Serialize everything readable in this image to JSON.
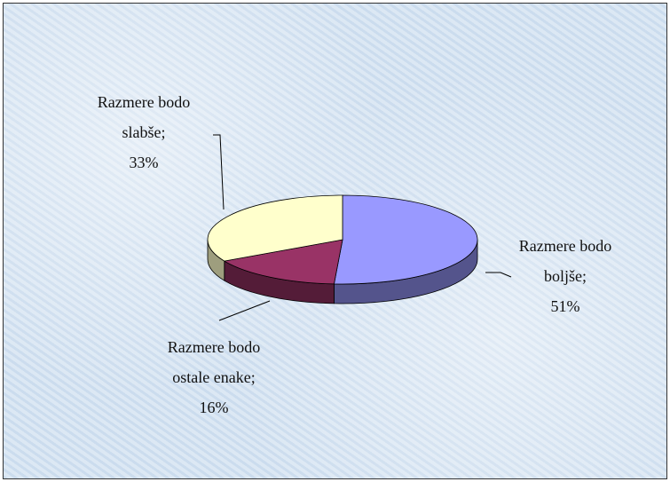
{
  "chart_data": {
    "type": "pie",
    "categories": [
      "Razmere bodo boljše;",
      "Razmere bodo ostale enake;",
      "Razmere bodo slabše;"
    ],
    "values": [
      51,
      16,
      33
    ],
    "value_labels": [
      "51%",
      "16%",
      "33%"
    ],
    "colors": [
      "#9999ff",
      "#993366",
      "#ffffcc"
    ],
    "start_angle": 0,
    "direction": "clockwise",
    "three_d": true
  }
}
